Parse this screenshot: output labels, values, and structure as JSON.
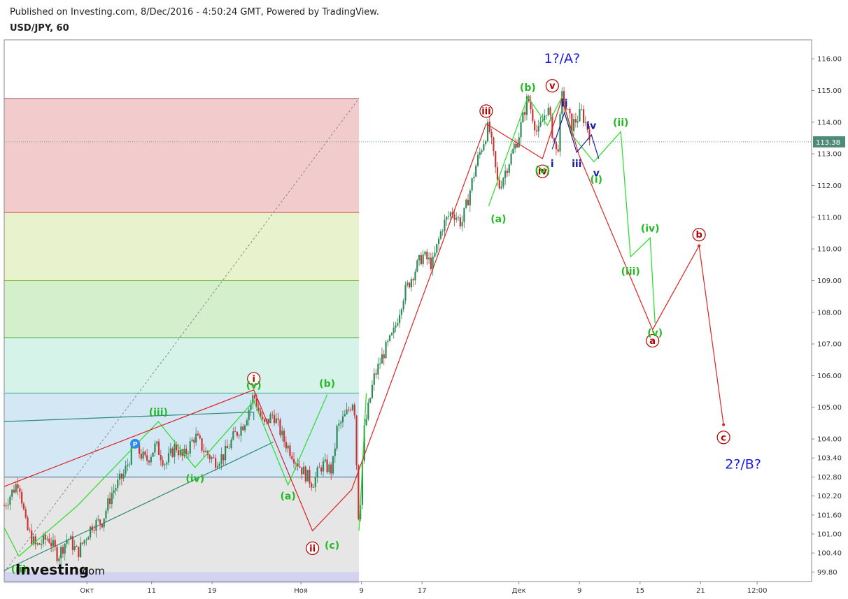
{
  "header": {
    "published": "Published on Investing.com, 8/Dec/2016 - 4:50:24 GMT, Powered by TradingView.",
    "symbol": "USD/JPY, 60"
  },
  "branding": {
    "logo_main": "Investing",
    "logo_suffix": ".com"
  },
  "colors": {
    "candle_up": "#2e8b57",
    "candle_down": "#cc3333",
    "impulse_green": "#22bb22",
    "wave_red": "#dd2222",
    "wave_blue": "#1a1aa8"
  },
  "chart_data": {
    "type": "candlestick",
    "title": "USD/JPY, 60",
    "ylim": [
      99.5,
      116.6
    ],
    "current_price": 113.38,
    "y_ticks": [
      "116.00",
      "115.00",
      "114.00",
      "113.00",
      "112.00",
      "111.00",
      "110.00",
      "109.00",
      "108.00",
      "107.00",
      "106.00",
      "105.00",
      "104.00",
      "103.40",
      "102.80",
      "102.20",
      "101.60",
      "101.00",
      "100.40",
      "99.80"
    ],
    "x_ticks": [
      "Окт",
      "11",
      "19",
      "Ноя",
      "9",
      "17",
      "Дек",
      "9",
      "15",
      "21",
      "12:00"
    ],
    "price_path": [
      [
        0,
        101.9
      ],
      [
        6,
        102.7
      ],
      [
        9,
        101.2
      ],
      [
        13,
        100.6
      ],
      [
        18,
        100.9
      ],
      [
        22,
        100.3
      ],
      [
        26,
        100.9
      ],
      [
        30,
        100.4
      ],
      [
        36,
        101.3
      ],
      [
        40,
        101.4
      ],
      [
        44,
        102.3
      ],
      [
        49,
        102.9
      ],
      [
        53,
        103.8
      ],
      [
        58,
        103.3
      ],
      [
        62,
        103.8
      ],
      [
        66,
        103.2
      ],
      [
        70,
        103.8
      ],
      [
        73,
        103.4
      ],
      [
        78,
        104.1
      ],
      [
        82,
        103.6
      ],
      [
        86,
        103.3
      ],
      [
        90,
        103.5
      ],
      [
        94,
        104.1
      ],
      [
        98,
        104.5
      ],
      [
        102,
        105.4
      ],
      [
        106,
        104.4
      ],
      [
        110,
        104.8
      ],
      [
        114,
        104.0
      ],
      [
        118,
        103.5
      ],
      [
        122,
        103.0
      ],
      [
        126,
        102.6
      ],
      [
        130,
        103.2
      ],
      [
        134,
        103.0
      ],
      [
        136,
        104.3
      ],
      [
        140,
        104.8
      ],
      [
        143,
        105.3
      ],
      [
        145,
        101.2
      ],
      [
        147,
        104.2
      ],
      [
        151,
        105.9
      ],
      [
        155,
        106.7
      ],
      [
        159,
        107.3
      ],
      [
        163,
        108.5
      ],
      [
        167,
        109.2
      ],
      [
        171,
        109.8
      ],
      [
        175,
        109.5
      ],
      [
        179,
        110.7
      ],
      [
        183,
        111.2
      ],
      [
        187,
        110.8
      ],
      [
        189,
        111.4
      ],
      [
        193,
        112.7
      ],
      [
        198,
        113.9
      ],
      [
        202,
        111.9
      ],
      [
        206,
        112.7
      ],
      [
        210,
        113.5
      ],
      [
        214,
        114.8
      ],
      [
        218,
        113.6
      ],
      [
        222,
        114.5
      ],
      [
        226,
        112.9
      ],
      [
        228,
        114.8
      ],
      [
        232,
        113.9
      ],
      [
        236,
        114.3
      ],
      [
        240,
        113.5
      ]
    ],
    "horizontal_levels": [
      114.75,
      111.15,
      109.0,
      107.2,
      105.45,
      102.8
    ],
    "zones": [
      {
        "from": 111.15,
        "to": 114.75,
        "color": "#f2cccc"
      },
      {
        "from": 109.0,
        "to": 111.15,
        "color": "#e8f2cc"
      },
      {
        "from": 107.2,
        "to": 109.0,
        "color": "#d4efcc"
      },
      {
        "from": 105.45,
        "to": 107.2,
        "color": "#d6f3e9"
      },
      {
        "from": 102.8,
        "to": 105.45,
        "color": "#d3e7f4"
      },
      {
        "from": 99.8,
        "to": 102.8,
        "color": "#e6e6e6"
      },
      {
        "from": 99.45,
        "to": 99.8,
        "color": "#d3d3f1"
      }
    ],
    "annotations": {
      "top_label": "1?/A?",
      "bottom_label": "2?/B?",
      "pivot_badge": "P"
    },
    "waves": {
      "red_path": [
        [
          0,
          102.5
        ],
        [
          102,
          105.55
        ],
        [
          126,
          101.1
        ],
        [
          142,
          102.4
        ],
        [
          197,
          113.95
        ],
        [
          220,
          112.85
        ],
        [
          228,
          114.75
        ],
        [
          235,
          112.95
        ],
        [
          265,
          107.45
        ],
        [
          284,
          110.1
        ],
        [
          294,
          104.45
        ]
      ],
      "red_labels": [
        {
          "t": "i",
          "x": 102,
          "y": 105.9,
          "circle": true
        },
        {
          "t": "ii",
          "x": 126,
          "y": 100.55,
          "circle": true
        },
        {
          "t": "iii",
          "x": 197,
          "y": 114.35,
          "circle": true
        },
        {
          "t": "iv",
          "x": 220,
          "y": 112.45,
          "circle": true
        },
        {
          "t": "v",
          "x": 224,
          "y": 115.15,
          "circle": true
        },
        {
          "t": "a",
          "x": 265,
          "y": 107.1,
          "circle": true
        },
        {
          "t": "b",
          "x": 284,
          "y": 110.45,
          "circle": true
        },
        {
          "t": "c",
          "x": 294,
          "y": 104.05,
          "circle": true
        },
        {
          "t": "iii",
          "x": 234,
          "y": 112.7,
          "circle": false
        }
      ],
      "green_path": [
        [
          0,
          101.2
        ],
        [
          6,
          100.3
        ],
        [
          30,
          101.9
        ],
        [
          63,
          104.55
        ],
        [
          78,
          103.1
        ],
        [
          102,
          105.2
        ],
        [
          116,
          102.55
        ],
        [
          132,
          105.4
        ]
      ],
      "green_path2": [
        [
          145,
          101.1
        ],
        [
          148,
          105.45
        ]
      ],
      "green_path3": [
        [
          198,
          111.35
        ],
        [
          214,
          114.8
        ],
        [
          222,
          113.9
        ],
        [
          228,
          114.8
        ],
        [
          232,
          113.6
        ],
        [
          241,
          112.75
        ],
        [
          252,
          113.7
        ],
        [
          256,
          109.75
        ],
        [
          264,
          110.35
        ],
        [
          266,
          107.65
        ]
      ],
      "green_labels": [
        {
          "t": "(ii)",
          "x": 6,
          "y": 99.9
        },
        {
          "t": "(iii)",
          "x": 63,
          "y": 104.85
        },
        {
          "t": "(iv)",
          "x": 78,
          "y": 102.75
        },
        {
          "t": "(v)",
          "x": 102,
          "y": 105.7
        },
        {
          "t": "(a)",
          "x": 116,
          "y": 102.2
        },
        {
          "t": "(b)",
          "x": 132,
          "y": 105.75
        },
        {
          "t": "(c)",
          "x": 134,
          "y": 100.65
        },
        {
          "t": "(a)",
          "x": 202,
          "y": 110.95
        },
        {
          "t": "(b)",
          "x": 214,
          "y": 115.1
        },
        {
          "t": "(i)",
          "x": 242,
          "y": 112.2
        },
        {
          "t": "(ii)",
          "x": 252,
          "y": 114.0
        },
        {
          "t": "(iii)",
          "x": 256,
          "y": 109.3
        },
        {
          "t": "(iv)",
          "x": 264,
          "y": 110.65
        },
        {
          "t": "(v)",
          "x": 266,
          "y": 107.35
        },
        {
          "t": "(v)",
          "x": 220,
          "y": 112.5
        }
      ],
      "blue_path": [
        [
          224,
          113.15
        ],
        [
          229,
          114.3
        ],
        [
          234,
          113.05
        ],
        [
          240,
          113.6
        ],
        [
          243,
          112.85
        ]
      ],
      "blue_labels": [
        {
          "t": "i",
          "x": 224,
          "y": 112.7
        },
        {
          "t": "ii",
          "x": 229,
          "y": 114.6
        },
        {
          "t": "iv",
          "x": 240,
          "y": 113.9
        },
        {
          "t": "v",
          "x": 242,
          "y": 112.4
        }
      ]
    }
  }
}
